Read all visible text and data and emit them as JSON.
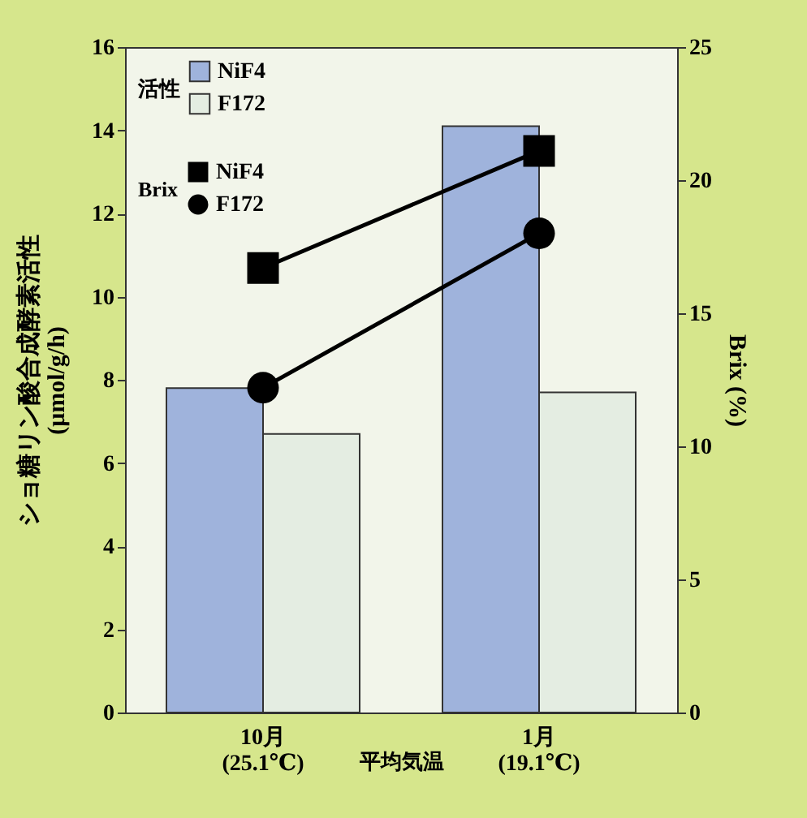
{
  "chart_data": {
    "type": "bar",
    "xlabel": "平均気温",
    "ylabel": "ショ糖リン酸合成酵素活性\n(μmol/g/h)",
    "y2label": "Brix (%)",
    "categories": [
      "10月\n(25.1℃)",
      "1月\n(19.1℃)"
    ],
    "series": [
      {
        "name": "NiF4",
        "color": "#9fb3dc",
        "values": [
          7.8,
          14.1
        ]
      },
      {
        "name": "F172",
        "color": "#e4ede2",
        "values": [
          6.7,
          7.7
        ]
      },
      {
        "type": "line",
        "axis": "y2",
        "name": "NiF4",
        "color": "#000000",
        "marker": "square",
        "values": [
          16.7,
          21.1
        ]
      },
      {
        "type": "line",
        "axis": "y2",
        "name": "F172",
        "color": "#000000",
        "marker": "circle",
        "values": [
          12.2,
          18.0
        ]
      }
    ],
    "annotations": [
      "活性",
      "Brix"
    ],
    "ylim": [
      0,
      16
    ],
    "yticks": [
      0,
      2,
      4,
      6,
      8,
      10,
      12,
      14,
      16
    ],
    "y2lim": [
      0,
      25
    ],
    "y2ticks": [
      0,
      5,
      10,
      15,
      20,
      25
    ],
    "grid": false,
    "legend": "top left"
  }
}
